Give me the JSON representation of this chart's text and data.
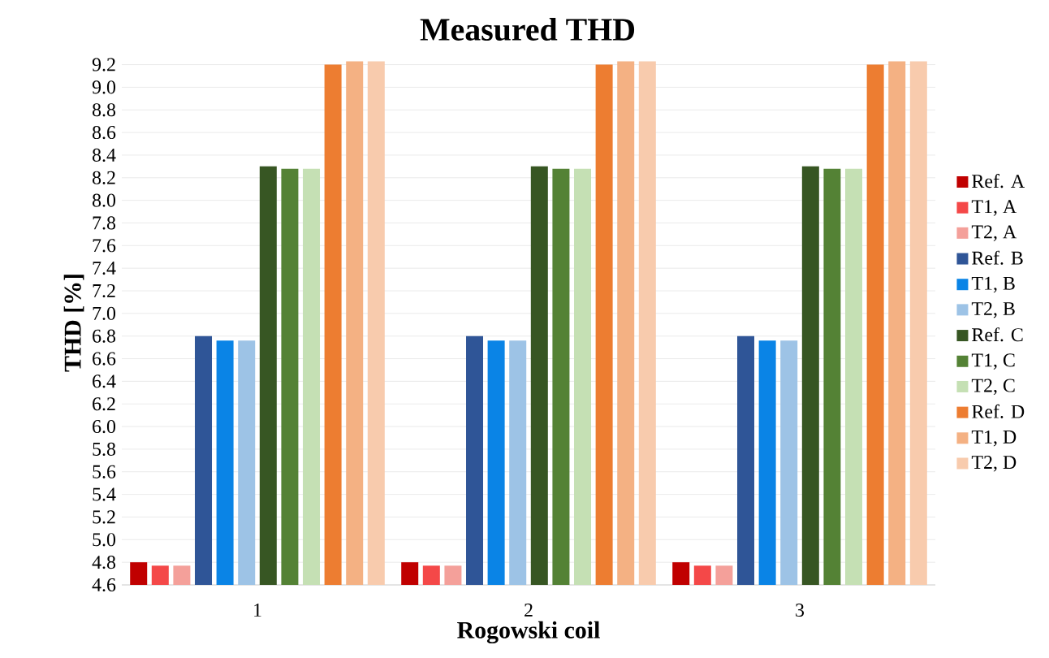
{
  "chart_data": {
    "type": "bar",
    "title": "Measured THD",
    "xlabel": "Rogowski coil",
    "ylabel": "THD [%]",
    "categories": [
      "1",
      "2",
      "3"
    ],
    "series": [
      {
        "name": "Ref. A",
        "color": "#c00000",
        "values": [
          4.8,
          4.8,
          4.8
        ]
      },
      {
        "name": "T1, A",
        "color": "#f44848",
        "values": [
          4.77,
          4.77,
          4.77
        ]
      },
      {
        "name": "T2, A",
        "color": "#f4a09a",
        "values": [
          4.77,
          4.77,
          4.77
        ]
      },
      {
        "name": "Ref. B",
        "color": "#2f5597",
        "values": [
          6.8,
          6.8,
          6.8
        ]
      },
      {
        "name": "T1, B",
        "color": "#0a84e6",
        "values": [
          6.76,
          6.76,
          6.76
        ]
      },
      {
        "name": "T2, B",
        "color": "#9dc3e6",
        "values": [
          6.76,
          6.76,
          6.76
        ]
      },
      {
        "name": "Ref. C",
        "color": "#375623",
        "values": [
          8.3,
          8.3,
          8.3
        ]
      },
      {
        "name": "T1, C",
        "color": "#548235",
        "values": [
          8.28,
          8.28,
          8.28
        ]
      },
      {
        "name": "T2, C",
        "color": "#c5e0b4",
        "values": [
          8.28,
          8.28,
          8.28
        ]
      },
      {
        "name": "Ref. D",
        "color": "#ed7d31",
        "values": [
          9.2,
          9.2,
          9.2
        ]
      },
      {
        "name": "T1, D",
        "color": "#f4b183",
        "values": [
          9.23,
          9.23,
          9.23
        ]
      },
      {
        "name": "T2, D",
        "color": "#f8cbad",
        "values": [
          9.23,
          9.23,
          9.23
        ]
      }
    ],
    "ylim": [
      4.6,
      9.24
    ],
    "yticks": [
      4.6,
      4.8,
      {
        "value": 5,
        "label": "5.0"
      },
      5.2,
      5.4,
      5.6,
      5.8,
      {
        "value": 6,
        "label": "6.0"
      },
      6.2,
      6.4,
      6.6,
      6.8,
      {
        "value": 7,
        "label": "7.0"
      },
      7.2,
      7.4,
      7.6,
      7.8,
      {
        "value": 8,
        "label": "8.0"
      },
      8.2,
      8.4,
      8.6,
      8.8,
      {
        "value": 9,
        "label": "9.0"
      },
      9.2
    ],
    "grid": "y",
    "legend": "right"
  }
}
